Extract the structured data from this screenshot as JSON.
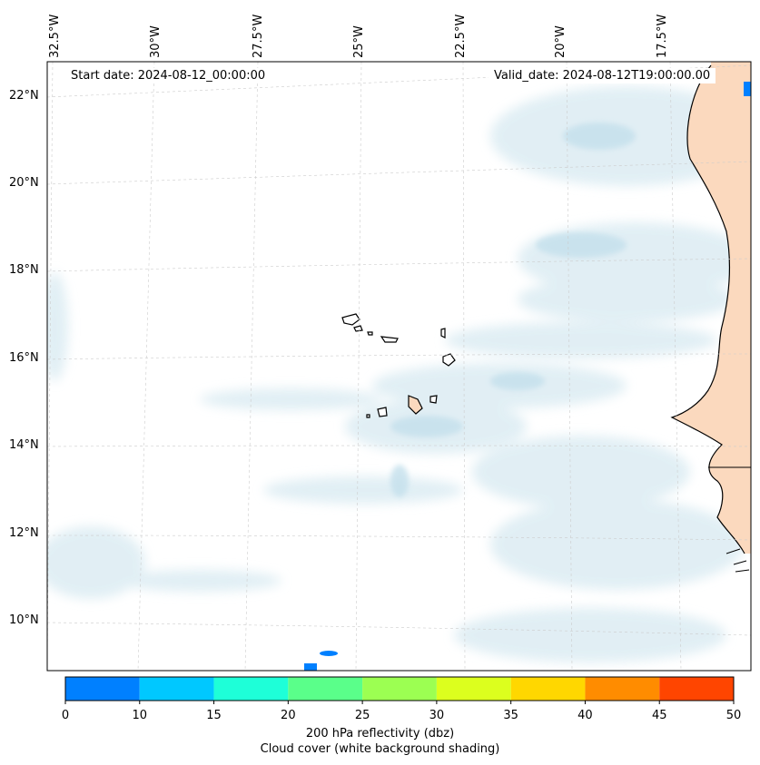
{
  "map": {
    "start_date": "Start date: 2024-08-12_00:00:00",
    "valid_date": "Valid_date: 2024-08-12T19:00:00.00",
    "lon_labels": [
      "32.5°W",
      "30°W",
      "27.5°W",
      "25°W",
      "22.5°W",
      "20°W",
      "17.5°W"
    ],
    "lat_labels": [
      "22°N",
      "20°N",
      "18°N",
      "16°N",
      "14°N",
      "12°N",
      "10°N"
    ],
    "region": "Cape Verde Islands and West African coast",
    "colors": {
      "cloud": "#cfe6f0",
      "reflectivity_warm": "#f9c9a3",
      "land_edge": "#000000"
    }
  },
  "colorbar": {
    "ticks": [
      "0",
      "10",
      "15",
      "20",
      "25",
      "30",
      "35",
      "40",
      "45",
      "50"
    ],
    "colors": [
      "#0080ff",
      "#00c8ff",
      "#1effd8",
      "#5aff8a",
      "#9cff52",
      "#dcff1e",
      "#ffd700",
      "#ff8c00",
      "#ff4500"
    ],
    "label": "200 hPa reflectivity (dbz)",
    "sublabel": "Cloud cover (white background shading)"
  }
}
